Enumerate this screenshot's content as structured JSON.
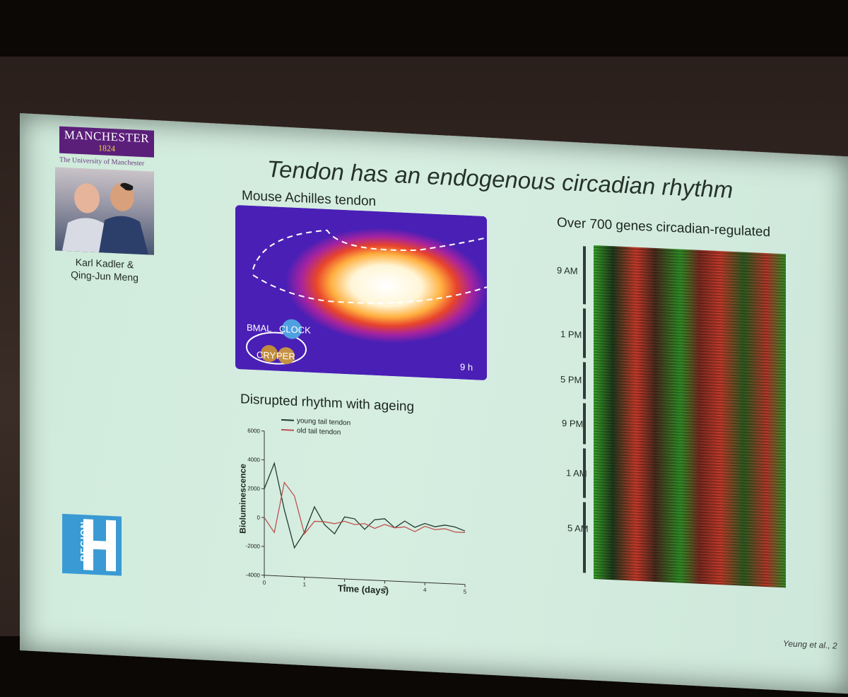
{
  "slide": {
    "title": "Tendon has an endogenous circadian rhythm",
    "logo": {
      "name": "MANCHESTER",
      "year": "1824",
      "subtitle": "The University of Manchester"
    },
    "photo_caption_line1": "Karl Kadler &",
    "photo_caption_line2": "Qing-Jun Meng",
    "left_panel_title": "Mouse Achilles tendon",
    "clock_labels": {
      "bmal": "BMAL",
      "clock": "CLOCK",
      "cry": "CRY",
      "per": "PER",
      "time": "9 h"
    },
    "plot_title": "Disrupted rhythm with ageing",
    "right_panel_title": "Over 700 genes circadian-regulated",
    "region_logo_text": "REGION",
    "citation": "Yeung et al., 2"
  },
  "chart_data": {
    "type": "line",
    "title": "Disrupted rhythm with ageing",
    "xlabel": "Time (days)",
    "ylabel": "Bioluminescence",
    "xlim": [
      0,
      5
    ],
    "ylim": [
      -4000,
      6000
    ],
    "x_ticks": [
      0,
      1,
      2,
      3,
      4,
      5
    ],
    "y_ticks": [
      -4000,
      -2000,
      0,
      2000,
      4000,
      6000
    ],
    "legend_position": "top",
    "series": [
      {
        "name": "young tail tendon",
        "color": "#1f3a2e",
        "x": [
          0,
          0.25,
          0.5,
          0.75,
          1,
          1.25,
          1.5,
          1.75,
          2,
          2.25,
          2.5,
          2.75,
          3,
          3.25,
          3.5,
          3.75,
          4,
          4.25,
          4.5,
          4.75,
          5
        ],
        "y": [
          2000,
          3800,
          600,
          -2000,
          -900,
          900,
          -300,
          -900,
          300,
          200,
          -500,
          200,
          300,
          -300,
          200,
          -200,
          100,
          -100,
          50,
          -50,
          -300
        ]
      },
      {
        "name": "old tail tendon",
        "color": "#c0504d",
        "x": [
          0,
          0.25,
          0.5,
          0.75,
          1,
          1.25,
          1.5,
          1.75,
          2,
          2.25,
          2.5,
          2.75,
          3,
          3.25,
          3.5,
          3.75,
          4,
          4.25,
          4.5,
          4.75,
          5
        ],
        "y": [
          0,
          -1000,
          2500,
          1600,
          -1000,
          -100,
          -100,
          -200,
          0,
          -200,
          -100,
          -400,
          -100,
          -300,
          -200,
          -500,
          -100,
          -300,
          -200,
          -400,
          -400
        ]
      }
    ]
  },
  "heatmap_labels": [
    "9 AM",
    "1 PM",
    "5 PM",
    "9 PM",
    "1 AM",
    "5 AM"
  ]
}
